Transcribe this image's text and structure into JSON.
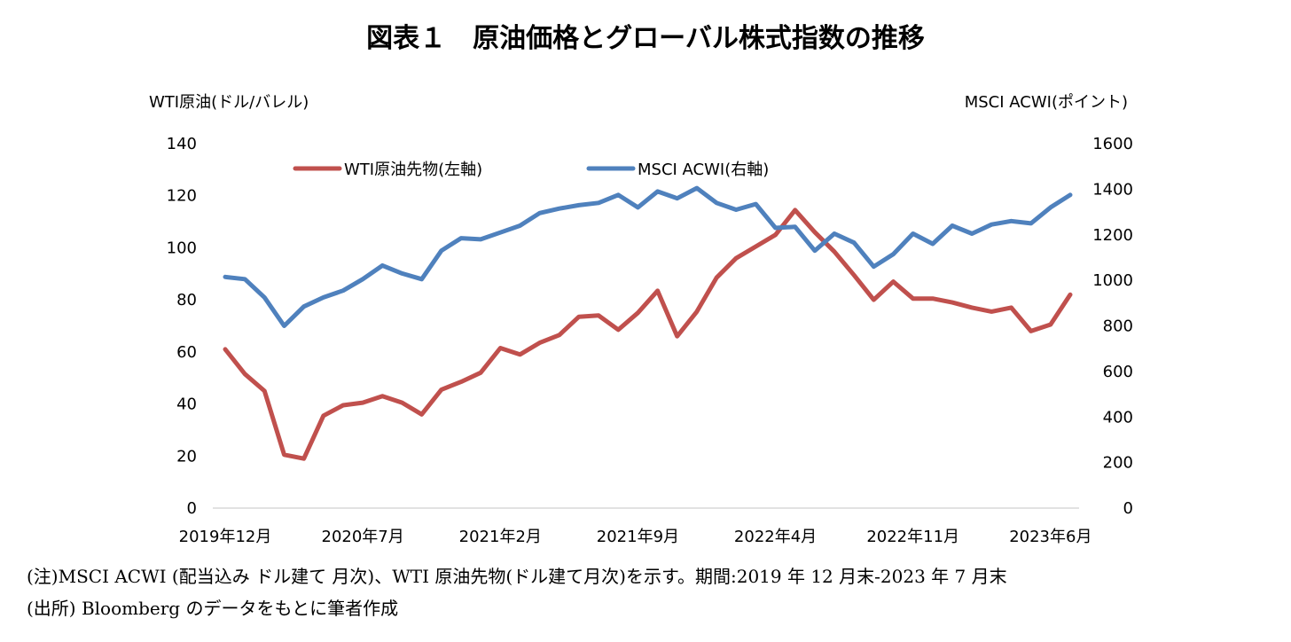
{
  "page": {
    "title": "図表１　原油価格とグローバル株式指数の推移",
    "note": "(注)MSCI ACWI (配当込み ドル建て 月次)、WTI 原油先物(ドル建て月次)を示す。期間:2019 年 12 月末-2023 年 7 月末",
    "source": "(出所) Bloomberg のデータをもとに筆者作成"
  },
  "chart_data": {
    "type": "line",
    "ylabel_left": "WTI原油(ドル/バレル)",
    "ylabel_right": "MSCI ACWI(ポイント)",
    "ylim_left": [
      0,
      140
    ],
    "ylim_right": [
      0,
      1600
    ],
    "yticks_left": [
      "0",
      "20",
      "40",
      "60",
      "80",
      "100",
      "120",
      "140"
    ],
    "yticks_right": [
      "0",
      "200",
      "400",
      "600",
      "800",
      "1000",
      "1200",
      "1400",
      "1600"
    ],
    "x_tick_labels": [
      {
        "index": 0,
        "label": "2019年12月"
      },
      {
        "index": 7,
        "label": "2020年7月"
      },
      {
        "index": 14,
        "label": "2021年2月"
      },
      {
        "index": 21,
        "label": "2021年9月"
      },
      {
        "index": 28,
        "label": "2022年4月"
      },
      {
        "index": 35,
        "label": "2022年11月"
      },
      {
        "index": 42,
        "label": "2023年6月"
      }
    ],
    "legend_position": "top",
    "grid": false,
    "series": [
      {
        "name": "WTI原油先物(左軸)",
        "axis": "left",
        "color": "#c0504d",
        "values": [
          61,
          51.5,
          45,
          20.5,
          19,
          35.5,
          39.5,
          40.5,
          43,
          40.5,
          36,
          45.5,
          48.5,
          52,
          61.5,
          59,
          63.5,
          66.5,
          73.5,
          74,
          68.5,
          75,
          83.5,
          66,
          75.5,
          88.5,
          96,
          100.5,
          105,
          114.5,
          106,
          98.5,
          89.5,
          80,
          87,
          80.5,
          80.5,
          79,
          77,
          75.5,
          77,
          68,
          70.5,
          82
        ]
      },
      {
        "name": "MSCI ACWI(右軸)",
        "axis": "right",
        "color": "#4f81bd",
        "values": [
          1015,
          1005,
          925,
          800,
          885,
          925,
          955,
          1005,
          1065,
          1030,
          1005,
          1130,
          1185,
          1180,
          1210,
          1240,
          1295,
          1315,
          1330,
          1340,
          1375,
          1320,
          1390,
          1360,
          1405,
          1340,
          1310,
          1335,
          1230,
          1235,
          1130,
          1205,
          1165,
          1060,
          1115,
          1205,
          1160,
          1240,
          1205,
          1245,
          1260,
          1250,
          1320,
          1375
        ]
      }
    ]
  }
}
